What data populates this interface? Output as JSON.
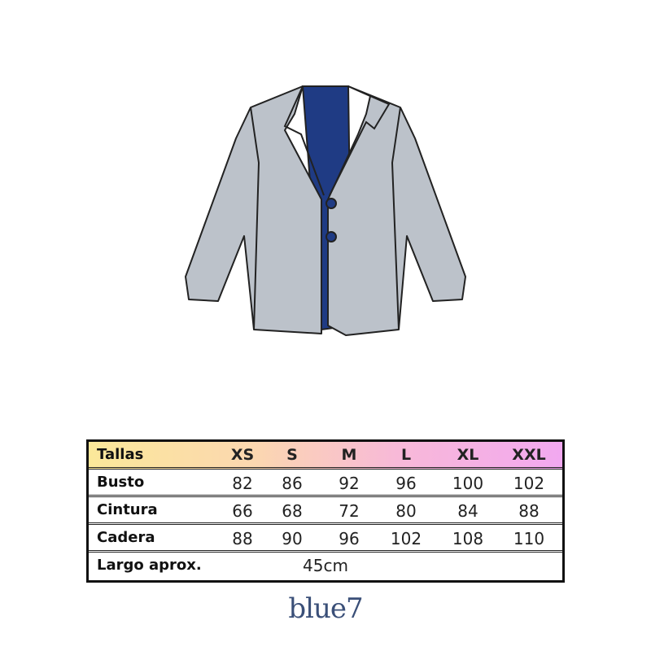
{
  "colors": {
    "jacket": "#bcc2ca",
    "shirt": "#1f3b84",
    "outline": "#222222",
    "logo": "#3a4f78"
  },
  "table": {
    "header": {
      "label": "Tallas",
      "sizes": [
        "XS",
        "S",
        "M",
        "L",
        "XL",
        "XXL"
      ]
    },
    "rows": [
      {
        "label": "Busto",
        "values": [
          "82",
          "86",
          "92",
          "96",
          "100",
          "102"
        ]
      },
      {
        "label": "Cintura",
        "values": [
          "66",
          "68",
          "72",
          "80",
          "84",
          "88"
        ]
      },
      {
        "label": "Cadera",
        "values": [
          "88",
          "90",
          "96",
          "102",
          "108",
          "110"
        ]
      }
    ],
    "length": {
      "label": "Largo aprox.",
      "value": "45cm"
    }
  },
  "brand": {
    "logo_text": "blue7"
  }
}
